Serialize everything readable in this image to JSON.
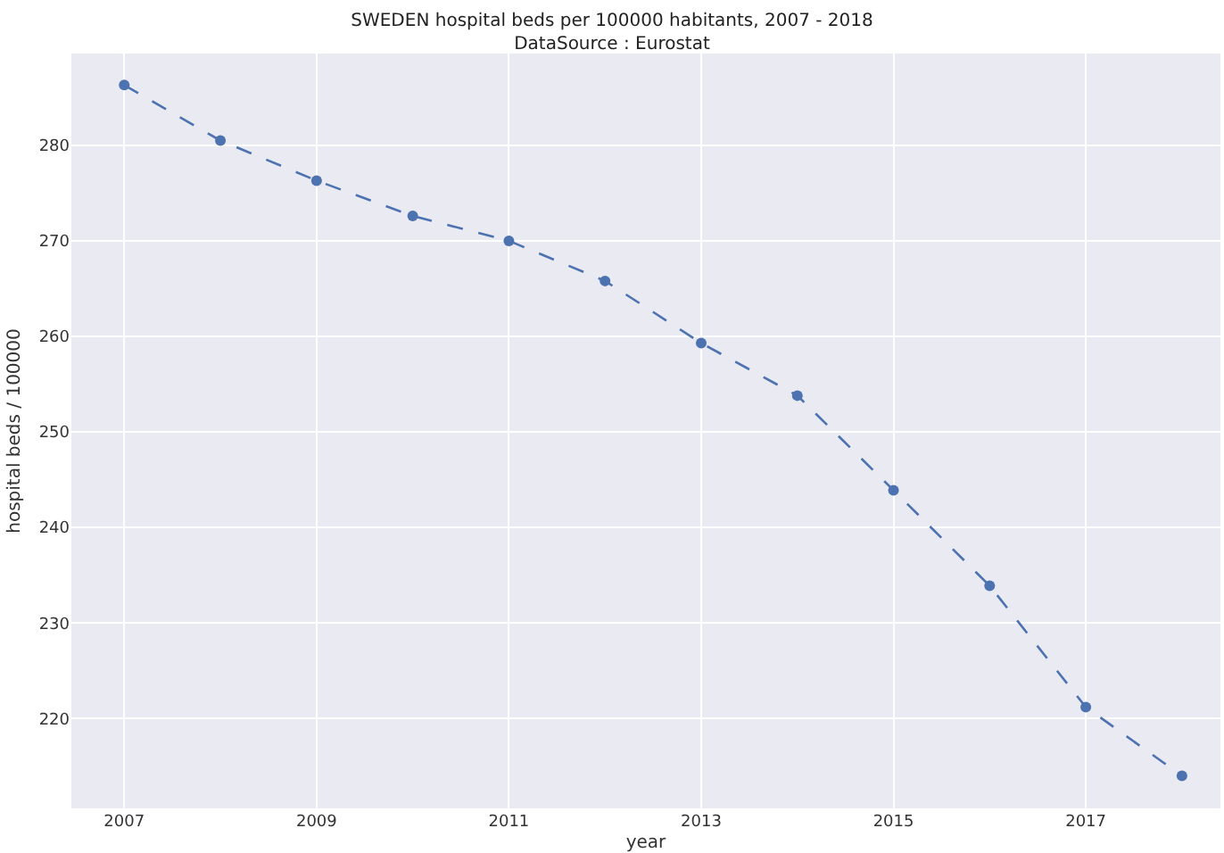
{
  "chart_data": {
    "type": "line",
    "title": "SWEDEN hospital beds per 100000 habitants, 2007 - 2018",
    "subtitle": "DataSource : Eurostat",
    "xlabel": "year",
    "ylabel": "hospital beds / 100000",
    "x": [
      2007,
      2008,
      2009,
      2010,
      2011,
      2012,
      2013,
      2014,
      2015,
      2016,
      2017,
      2018
    ],
    "series": [
      {
        "color": "#4c72b0",
        "values": [
          286.3,
          280.5,
          276.3,
          272.6,
          270.0,
          265.8,
          259.3,
          253.8,
          243.9,
          233.9,
          221.2,
          214.0
        ]
      }
    ],
    "xlim": [
      2006.45,
      2018.4
    ],
    "xticks": [
      2007,
      2009,
      2011,
      2013,
      2015,
      2017
    ],
    "ylim": [
      210.6,
      289.6
    ],
    "yticks": [
      220,
      230,
      240,
      250,
      260,
      270,
      280
    ],
    "grid": true,
    "marker": "circle",
    "line_style": "dashed"
  }
}
